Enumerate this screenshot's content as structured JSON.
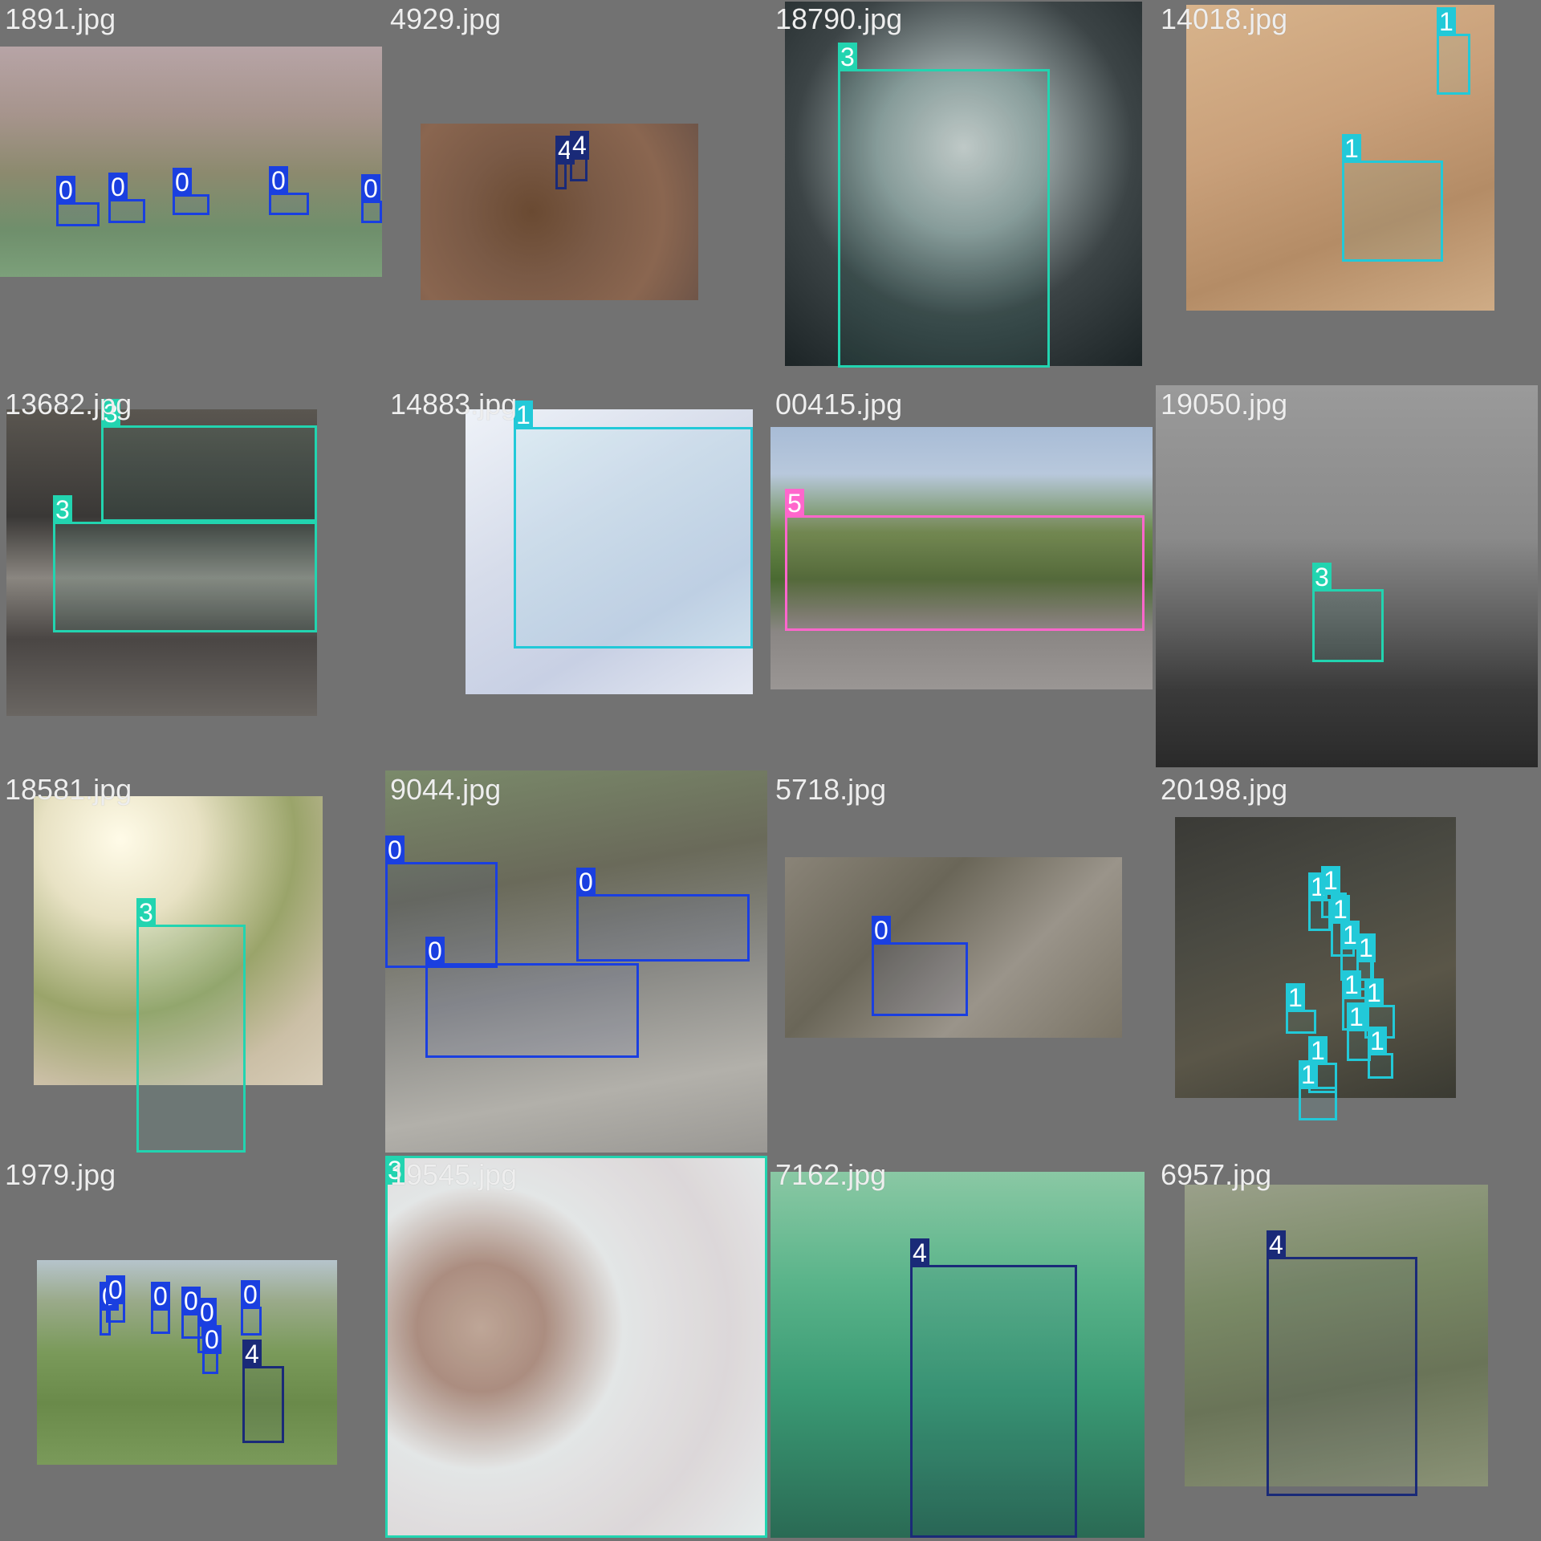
{
  "class_colors": {
    "0": "#1a3fe0",
    "1": "#22c9d8",
    "3": "#22d4b0",
    "4": "#1a2a78",
    "5": "#ff66cc"
  },
  "tiles": [
    {
      "caption": "1891.jpg",
      "image": {
        "bg": "linear-gradient(180deg,#b7a4a6 0%,#a6948c 30%,#8c8a6e 55%,#6f8f6c 80%,#7ca07a 100%)"
      },
      "boxes": [
        {
          "label": "0",
          "cls": "0"
        },
        {
          "label": "0",
          "cls": "0"
        },
        {
          "label": "0",
          "cls": "0"
        },
        {
          "label": "0",
          "cls": "0"
        },
        {
          "label": "0",
          "cls": "0"
        }
      ]
    },
    {
      "caption": "4929.jpg",
      "image": {
        "bg": "radial-gradient(circle at 40% 50%,#6a4a32 0%,#7a5a46 35%,#8a6650 70%,#6f5548 100%)"
      },
      "boxes": [
        {
          "label": "4",
          "cls": "4"
        },
        {
          "label": "4",
          "cls": "4"
        }
      ]
    },
    {
      "caption": "18790.jpg",
      "image": {
        "bg": "radial-gradient(circle at 50% 40%,#c9c9c9 0%,#8e9a9a 30%,#3c4446 60%,#1c2426 100%)"
      },
      "boxes": [
        {
          "label": "3",
          "cls": "3"
        }
      ]
    },
    {
      "caption": "14018.jpg",
      "image": {
        "bg": "linear-gradient(160deg,#d8b48c 0%,#c9a07a 40%,#b48c66 70%,#cfac86 100%)"
      },
      "boxes": [
        {
          "label": "1",
          "cls": "1"
        },
        {
          "label": "1",
          "cls": "1"
        }
      ]
    },
    {
      "caption": "13682.jpg",
      "image": {
        "bg": "linear-gradient(180deg,#5a5650 0%,#3a3836 35%,#8a8680 55%,#4a4644 75%,#6a6662 100%)"
      },
      "boxes": [
        {
          "label": "3",
          "cls": "3"
        },
        {
          "label": "3",
          "cls": "3"
        }
      ]
    },
    {
      "caption": "14883.jpg",
      "image": {
        "bg": "linear-gradient(150deg,#eef2f8 0%,#d6dcea 40%,#c8d0e4 70%,#e4e8f2 100%)"
      },
      "boxes": [
        {
          "label": "1",
          "cls": "1"
        }
      ]
    },
    {
      "caption": "00415.jpg",
      "image": {
        "bg": "linear-gradient(180deg,#a8bcd6 0%,#b8c8dc 18%,#6a8a4a 40%,#4a6a32 58%,#8a8684 78%,#9a9694 100%)"
      },
      "boxes": [
        {
          "label": "5",
          "cls": "5"
        }
      ]
    },
    {
      "caption": "19050.jpg",
      "image": {
        "bg": "linear-gradient(180deg,#9a9a9a 0%,#8a8a8a 40%,#5a5a5a 65%,#3a3a3a 80%,#2a2a2a 100%)"
      },
      "boxes": [
        {
          "label": "3",
          "cls": "3"
        }
      ]
    },
    {
      "caption": "18581.jpg",
      "image": {
        "bg": "radial-gradient(circle at 30% 15%,#fffbe8 0%,#e8e2c4 25%,#9aa46a 55%,#cbbfa6 80%,#d8cdb8 100%)"
      },
      "boxes": [
        {
          "label": "3",
          "cls": "3"
        }
      ]
    },
    {
      "caption": "9044.jpg",
      "image": {
        "bg": "linear-gradient(170deg,#7a8a6a 0%,#6a6a5a 30%,#8a8a86 55%,#b2b0aa 80%,#9a9894 100%)"
      },
      "boxes": [
        {
          "label": "0",
          "cls": "0"
        },
        {
          "label": "0",
          "cls": "0"
        },
        {
          "label": "0",
          "cls": "0"
        }
      ]
    },
    {
      "caption": "5718.jpg",
      "image": {
        "bg": "linear-gradient(135deg,#8a8478 0%,#6a6658 35%,#9a948a 65%,#7a7466 100%)"
      },
      "boxes": [
        {
          "label": "0",
          "cls": "0"
        }
      ]
    },
    {
      "caption": "20198.jpg",
      "image": {
        "bg": "linear-gradient(160deg,#3a3a36 0%,#4a4a42 35%,#5a5648 65%,#3a3a32 100%)"
      },
      "boxes": [
        {
          "label": "1",
          "cls": "1"
        },
        {
          "label": "1",
          "cls": "1"
        },
        {
          "label": "1",
          "cls": "1"
        },
        {
          "label": "1",
          "cls": "1"
        },
        {
          "label": "1",
          "cls": "1"
        },
        {
          "label": "1",
          "cls": "1"
        },
        {
          "label": "1",
          "cls": "1"
        },
        {
          "label": "1",
          "cls": "1"
        },
        {
          "label": "1",
          "cls": "1"
        },
        {
          "label": "1",
          "cls": "1"
        },
        {
          "label": "1",
          "cls": "1"
        },
        {
          "label": "1",
          "cls": "1"
        }
      ]
    },
    {
      "caption": "1979.jpg",
      "image": {
        "bg": "linear-gradient(180deg,#b6c4cc 0%,#9aaa8a 20%,#7a9a5a 45%,#6a8a4a 70%,#7a9a5a 100%)"
      },
      "boxes": [
        {
          "label": "0",
          "cls": "0"
        },
        {
          "label": "0",
          "cls": "0"
        },
        {
          "label": "0",
          "cls": "0"
        },
        {
          "label": "0",
          "cls": "0"
        },
        {
          "label": "0",
          "cls": "0"
        },
        {
          "label": "0",
          "cls": "0"
        },
        {
          "label": "0",
          "cls": "0"
        },
        {
          "label": "4",
          "cls": "4"
        }
      ]
    },
    {
      "caption": "19545.jpg",
      "image": {
        "bg": "radial-gradient(circle at 25% 45%,#c8a496 0%,#b48a7e 18%,#f0e8ea 40%,#e8d8dc 70%,#f4eef0 100%)"
      },
      "boxes": [
        {
          "label": "3",
          "cls": "3"
        }
      ]
    },
    {
      "caption": "7162.jpg",
      "image": {
        "bg": "linear-gradient(180deg,#8ac8a4 0%,#5ab48a 30%,#3a9a74 60%,#2a6a54 100%)"
      },
      "boxes": [
        {
          "label": "4",
          "cls": "4"
        }
      ]
    },
    {
      "caption": "6957.jpg",
      "image": {
        "bg": "linear-gradient(170deg,#9aa08a 0%,#7a8a66 35%,#6a7458 65%,#8a9276 100%)"
      },
      "boxes": [
        {
          "label": "4",
          "cls": "4"
        }
      ]
    }
  ]
}
